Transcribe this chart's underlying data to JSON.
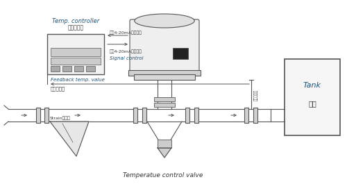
{
  "bg_color": "#ffffff",
  "line_color": "#555555",
  "text_color_en": "#1a5276",
  "text_color_cn": "#333333",
  "labels": {
    "temp_controller_en": "Temp. controller",
    "temp_controller_cn": "溫度控制儀",
    "feedback_signal_cn": "反饋4-20mA控制信號",
    "input_signal_cn": "輸入4-20mA控制信號",
    "signal_control_en": "Signal control",
    "feedback_temp_en": "Feedback temp. value",
    "feedback_temp_cn": "反饋溫度值",
    "strain_en": "Strain減濾器",
    "temp_control_valve_en": "Temperatue control valve",
    "tank_en": "Tank",
    "tank_cn": "儲罐",
    "temp_sensor_cn": "溫度傳感器"
  }
}
